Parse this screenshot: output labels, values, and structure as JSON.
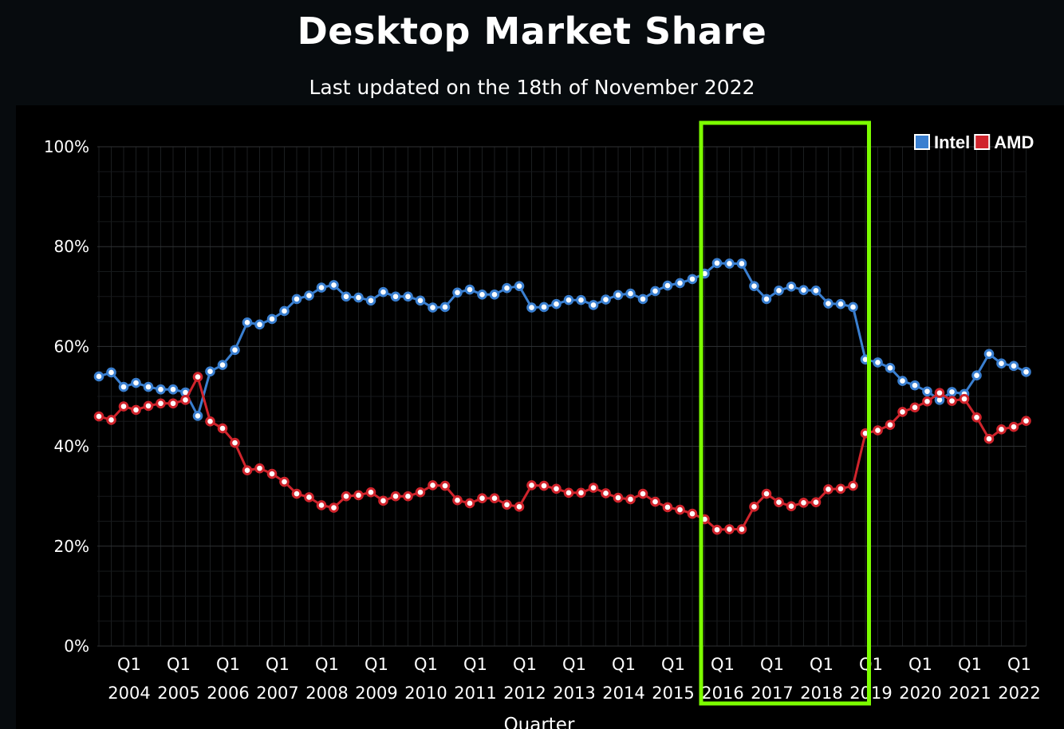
{
  "page": {
    "title": "Desktop Market Share",
    "subtitle": "Last updated on the 18th of November 2022"
  },
  "chart_data": {
    "type": "line",
    "title": "Desktop Market Share",
    "subtitle": "Last updated on the 18th of November 2022",
    "xlabel": "Quarter",
    "ylabel": "",
    "ylim": [
      0,
      100
    ],
    "yticks": [
      "0%",
      "20%",
      "40%",
      "60%",
      "80%",
      "100%"
    ],
    "x_start": "Q3 2003",
    "x_end": "Q4 2022",
    "x_tick_labels": [
      {
        "q": "Q1",
        "year": "2004"
      },
      {
        "q": "Q1",
        "year": "2005"
      },
      {
        "q": "Q1",
        "year": "2006"
      },
      {
        "q": "Q1",
        "year": "2007"
      },
      {
        "q": "Q1",
        "year": "2008"
      },
      {
        "q": "Q1",
        "year": "2009"
      },
      {
        "q": "Q1",
        "year": "2010"
      },
      {
        "q": "Q1",
        "year": "2011"
      },
      {
        "q": "Q1",
        "year": "2012"
      },
      {
        "q": "Q1",
        "year": "2013"
      },
      {
        "q": "Q1",
        "year": "2014"
      },
      {
        "q": "Q1",
        "year": "2015"
      },
      {
        "q": "Q1",
        "year": "2016"
      },
      {
        "q": "Q1",
        "year": "2017"
      },
      {
        "q": "Q1",
        "year": "2018"
      },
      {
        "q": "Q1",
        "year": "2019"
      },
      {
        "q": "Q1",
        "year": "2020"
      },
      {
        "q": "Q1",
        "year": "2021"
      },
      {
        "q": "Q1",
        "year": "2022"
      }
    ],
    "grid": true,
    "legend": "top-right",
    "series": [
      {
        "name": "Intel",
        "color": "#3a7fd0",
        "values": [
          54.0,
          54.8,
          51.9,
          52.7,
          51.9,
          51.4,
          51.4,
          50.8,
          46.1,
          55.0,
          56.3,
          59.3,
          64.8,
          64.4,
          65.5,
          67.1,
          69.5,
          70.2,
          71.8,
          72.3,
          70.0,
          69.8,
          69.2,
          70.9,
          70.0,
          70.0,
          69.2,
          67.8,
          67.9,
          70.8,
          71.4,
          70.4,
          70.4,
          71.7,
          72.1,
          67.8,
          67.9,
          68.5,
          69.3,
          69.3,
          68.3,
          69.4,
          70.3,
          70.6,
          69.5,
          71.1,
          72.2,
          72.7,
          73.5,
          74.6,
          76.7,
          76.6,
          76.6,
          72.1,
          69.5,
          71.2,
          72.0,
          71.3,
          71.2,
          68.6,
          68.5,
          67.9,
          57.4,
          56.8,
          55.7,
          53.1,
          52.2,
          51.0,
          49.3,
          50.9,
          50.5,
          54.2,
          58.5,
          56.6,
          56.1,
          54.9
        ]
      },
      {
        "name": "AMD",
        "color": "#d0242c",
        "values": [
          46.0,
          45.3,
          48.0,
          47.3,
          48.1,
          48.6,
          48.6,
          49.3,
          53.9,
          45.0,
          43.6,
          40.7,
          35.2,
          35.6,
          34.5,
          32.9,
          30.5,
          29.8,
          28.2,
          27.7,
          30.0,
          30.2,
          30.8,
          29.1,
          30.0,
          30.0,
          30.8,
          32.2,
          32.1,
          29.2,
          28.6,
          29.6,
          29.6,
          28.3,
          27.9,
          32.2,
          32.1,
          31.5,
          30.7,
          30.7,
          31.7,
          30.6,
          29.7,
          29.4,
          30.5,
          28.9,
          27.8,
          27.3,
          26.5,
          25.4,
          23.3,
          23.4,
          23.4,
          27.9,
          30.5,
          28.8,
          28.0,
          28.7,
          28.8,
          31.4,
          31.5,
          32.1,
          42.6,
          43.2,
          44.3,
          46.9,
          47.8,
          49.0,
          50.7,
          49.1,
          49.5,
          45.8,
          41.5,
          43.4,
          43.9,
          45.1
        ]
      }
    ],
    "annotations": [
      {
        "type": "highlight-box",
        "color": "#7cfc00",
        "from": "Q1 2016",
        "to": "Q4 2018"
      }
    ]
  }
}
